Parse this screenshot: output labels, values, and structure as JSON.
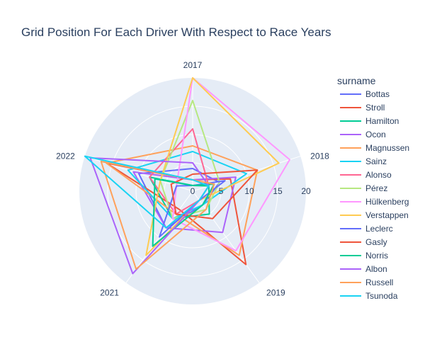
{
  "chart_data": {
    "type": "radar",
    "title": "Grid Position For Each Driver With Respect to Race Years",
    "categories": [
      "2017",
      "2018",
      "2019",
      "2021",
      "2022"
    ],
    "radial_range": [
      0,
      20
    ],
    "radial_ticks": [
      "0",
      "5",
      "10",
      "15",
      "20"
    ],
    "grid": true,
    "legend_title": "surname",
    "legend_position": "right",
    "series": [
      {
        "name": "Bottas",
        "color": "#636efa",
        "values": [
          4,
          5,
          3,
          8,
          10
        ]
      },
      {
        "name": "Stroll",
        "color": "#EF553B",
        "values": [
          2,
          7,
          16,
          4,
          16
        ]
      },
      {
        "name": "Hamilton",
        "color": "#00cc96",
        "values": [
          1,
          3,
          5,
          6,
          8
        ]
      },
      {
        "name": "Ocon",
        "color": "#ab63fa",
        "values": [
          2,
          8,
          9,
          8,
          11
        ]
      },
      {
        "name": "Magnussen",
        "color": "#FFA15A",
        "values": [
          8,
          12,
          14,
          5,
          16
        ]
      },
      {
        "name": "Sainz",
        "color": "#19d3f3",
        "values": [
          7,
          10,
          3,
          6,
          12
        ]
      },
      {
        "name": "Alonso",
        "color": "#FF6692",
        "values": [
          11,
          3,
          2,
          5,
          8
        ]
      },
      {
        "name": "Pérez",
        "color": "#B6E880",
        "values": [
          16,
          5,
          4,
          6,
          6
        ]
      },
      {
        "name": "Hülkenberg",
        "color": "#FF97FF",
        "values": [
          20,
          18,
          13,
          6,
          3
        ]
      },
      {
        "name": "Verstappen",
        "color": "#FECB52",
        "values": [
          20,
          16,
          2,
          14,
          6
        ]
      },
      {
        "name": "Leclerc",
        "color": "#636efa",
        "values": [
          1,
          6,
          2,
          10,
          3
        ]
      },
      {
        "name": "Gasly",
        "color": "#EF553B",
        "values": [
          3,
          12,
          6,
          5,
          4
        ]
      },
      {
        "name": "Norris",
        "color": "#00cc96",
        "values": [
          1,
          4,
          3,
          12,
          7
        ]
      },
      {
        "name": "Albon",
        "color": "#ab63fa",
        "values": [
          5,
          3,
          2,
          18,
          19
        ]
      },
      {
        "name": "Russell",
        "color": "#FFA15A",
        "values": [
          2,
          4,
          4,
          17,
          17
        ]
      },
      {
        "name": "Tsunoda",
        "color": "#19d3f3",
        "values": [
          2,
          3,
          2,
          8,
          20
        ]
      }
    ]
  }
}
